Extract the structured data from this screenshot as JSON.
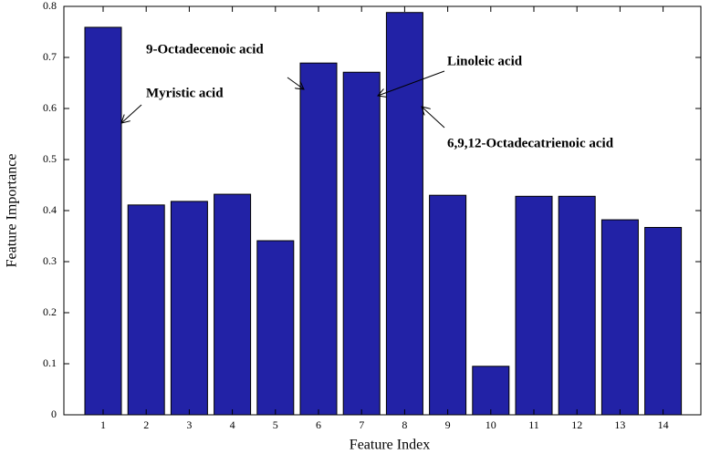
{
  "chart_data": {
    "type": "bar",
    "xlabel": "Feature Index",
    "ylabel": "Feature Importance",
    "categories": [
      "1",
      "2",
      "3",
      "4",
      "5",
      "6",
      "7",
      "8",
      "9",
      "10",
      "11",
      "12",
      "13",
      "14"
    ],
    "values": [
      0.759,
      0.411,
      0.418,
      0.432,
      0.341,
      0.689,
      0.671,
      0.788,
      0.43,
      0.095,
      0.428,
      0.428,
      0.382,
      0.367
    ],
    "color": "#2222a6",
    "ylim": [
      0,
      0.8
    ],
    "yticks": [
      0,
      0.1,
      0.2,
      0.3,
      0.4,
      0.5,
      0.6,
      0.7,
      0.8
    ],
    "grid": false,
    "annotations": [
      "Myristic acid",
      "9-Octadecenoic acid",
      "Linoleic acid",
      "6,9,12-Octadecatrienoic acid"
    ]
  }
}
